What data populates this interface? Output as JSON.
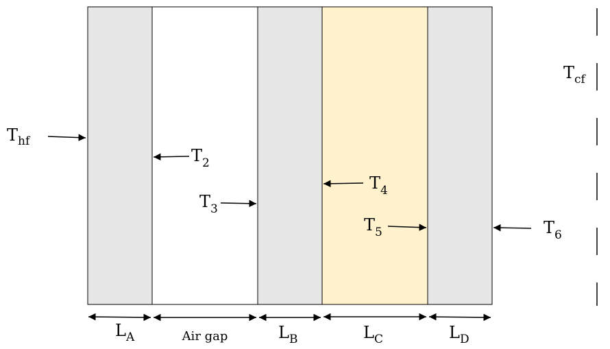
{
  "diagram": {
    "layers": [
      {
        "id": "A",
        "fill": "#e6e6e6"
      },
      {
        "id": "air",
        "fill": "#ffffff"
      },
      {
        "id": "B",
        "fill": "#e6e6e6"
      },
      {
        "id": "C",
        "fill": "#fff2cc"
      },
      {
        "id": "D",
        "fill": "#e6e6e6"
      }
    ],
    "temps": {
      "hf": {
        "main": "T",
        "sub": "hf"
      },
      "t2": {
        "main": "T",
        "sub": "2"
      },
      "t3": {
        "main": "T",
        "sub": "3"
      },
      "t4": {
        "main": "T",
        "sub": "4"
      },
      "t5": {
        "main": "T",
        "sub": "5"
      },
      "t6": {
        "main": "T",
        "sub": "6"
      },
      "cf": {
        "main": "T",
        "sub": "cf"
      }
    },
    "dims": {
      "la": {
        "main": "L",
        "sub": "A"
      },
      "air": "Air gap",
      "lb": {
        "main": "L",
        "sub": "B"
      },
      "lc": {
        "main": "L",
        "sub": "C"
      },
      "ld": {
        "main": "L",
        "sub": "D"
      }
    }
  }
}
